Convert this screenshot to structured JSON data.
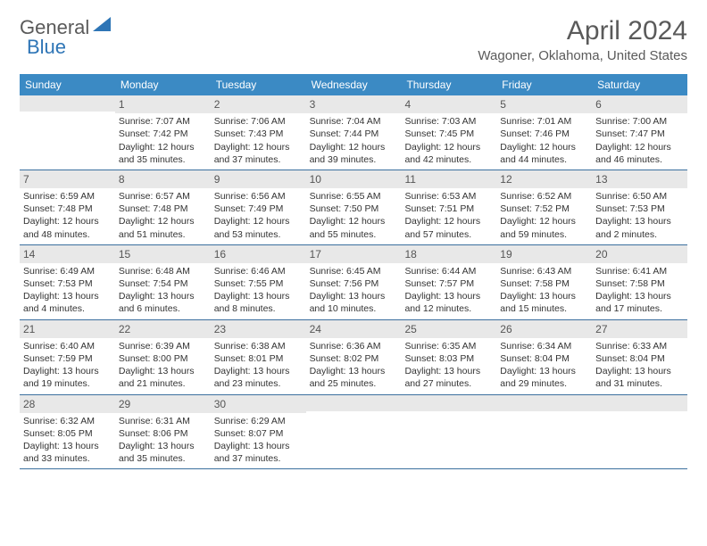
{
  "logo": {
    "text1": "General",
    "text2": "Blue"
  },
  "title": "April 2024",
  "location": "Wagoner, Oklahoma, United States",
  "colors": {
    "header_bg": "#3b8ac4",
    "header_text": "#ffffff",
    "row_border": "#3b6f9e",
    "daynum_bg": "#e8e8e8",
    "body_text": "#333333",
    "title_text": "#5a5a5a",
    "logo_blue": "#2e75b6"
  },
  "weekdays": [
    "Sunday",
    "Monday",
    "Tuesday",
    "Wednesday",
    "Thursday",
    "Friday",
    "Saturday"
  ],
  "weeks": [
    [
      null,
      {
        "n": "1",
        "sr": "7:07 AM",
        "ss": "7:42 PM",
        "dl": "12 hours and 35 minutes."
      },
      {
        "n": "2",
        "sr": "7:06 AM",
        "ss": "7:43 PM",
        "dl": "12 hours and 37 minutes."
      },
      {
        "n": "3",
        "sr": "7:04 AM",
        "ss": "7:44 PM",
        "dl": "12 hours and 39 minutes."
      },
      {
        "n": "4",
        "sr": "7:03 AM",
        "ss": "7:45 PM",
        "dl": "12 hours and 42 minutes."
      },
      {
        "n": "5",
        "sr": "7:01 AM",
        "ss": "7:46 PM",
        "dl": "12 hours and 44 minutes."
      },
      {
        "n": "6",
        "sr": "7:00 AM",
        "ss": "7:47 PM",
        "dl": "12 hours and 46 minutes."
      }
    ],
    [
      {
        "n": "7",
        "sr": "6:59 AM",
        "ss": "7:48 PM",
        "dl": "12 hours and 48 minutes."
      },
      {
        "n": "8",
        "sr": "6:57 AM",
        "ss": "7:48 PM",
        "dl": "12 hours and 51 minutes."
      },
      {
        "n": "9",
        "sr": "6:56 AM",
        "ss": "7:49 PM",
        "dl": "12 hours and 53 minutes."
      },
      {
        "n": "10",
        "sr": "6:55 AM",
        "ss": "7:50 PM",
        "dl": "12 hours and 55 minutes."
      },
      {
        "n": "11",
        "sr": "6:53 AM",
        "ss": "7:51 PM",
        "dl": "12 hours and 57 minutes."
      },
      {
        "n": "12",
        "sr": "6:52 AM",
        "ss": "7:52 PM",
        "dl": "12 hours and 59 minutes."
      },
      {
        "n": "13",
        "sr": "6:50 AM",
        "ss": "7:53 PM",
        "dl": "13 hours and 2 minutes."
      }
    ],
    [
      {
        "n": "14",
        "sr": "6:49 AM",
        "ss": "7:53 PM",
        "dl": "13 hours and 4 minutes."
      },
      {
        "n": "15",
        "sr": "6:48 AM",
        "ss": "7:54 PM",
        "dl": "13 hours and 6 minutes."
      },
      {
        "n": "16",
        "sr": "6:46 AM",
        "ss": "7:55 PM",
        "dl": "13 hours and 8 minutes."
      },
      {
        "n": "17",
        "sr": "6:45 AM",
        "ss": "7:56 PM",
        "dl": "13 hours and 10 minutes."
      },
      {
        "n": "18",
        "sr": "6:44 AM",
        "ss": "7:57 PM",
        "dl": "13 hours and 12 minutes."
      },
      {
        "n": "19",
        "sr": "6:43 AM",
        "ss": "7:58 PM",
        "dl": "13 hours and 15 minutes."
      },
      {
        "n": "20",
        "sr": "6:41 AM",
        "ss": "7:58 PM",
        "dl": "13 hours and 17 minutes."
      }
    ],
    [
      {
        "n": "21",
        "sr": "6:40 AM",
        "ss": "7:59 PM",
        "dl": "13 hours and 19 minutes."
      },
      {
        "n": "22",
        "sr": "6:39 AM",
        "ss": "8:00 PM",
        "dl": "13 hours and 21 minutes."
      },
      {
        "n": "23",
        "sr": "6:38 AM",
        "ss": "8:01 PM",
        "dl": "13 hours and 23 minutes."
      },
      {
        "n": "24",
        "sr": "6:36 AM",
        "ss": "8:02 PM",
        "dl": "13 hours and 25 minutes."
      },
      {
        "n": "25",
        "sr": "6:35 AM",
        "ss": "8:03 PM",
        "dl": "13 hours and 27 minutes."
      },
      {
        "n": "26",
        "sr": "6:34 AM",
        "ss": "8:04 PM",
        "dl": "13 hours and 29 minutes."
      },
      {
        "n": "27",
        "sr": "6:33 AM",
        "ss": "8:04 PM",
        "dl": "13 hours and 31 minutes."
      }
    ],
    [
      {
        "n": "28",
        "sr": "6:32 AM",
        "ss": "8:05 PM",
        "dl": "13 hours and 33 minutes."
      },
      {
        "n": "29",
        "sr": "6:31 AM",
        "ss": "8:06 PM",
        "dl": "13 hours and 35 minutes."
      },
      {
        "n": "30",
        "sr": "6:29 AM",
        "ss": "8:07 PM",
        "dl": "13 hours and 37 minutes."
      },
      null,
      null,
      null,
      null
    ]
  ],
  "labels": {
    "sunrise": "Sunrise:",
    "sunset": "Sunset:",
    "daylight": "Daylight:"
  }
}
